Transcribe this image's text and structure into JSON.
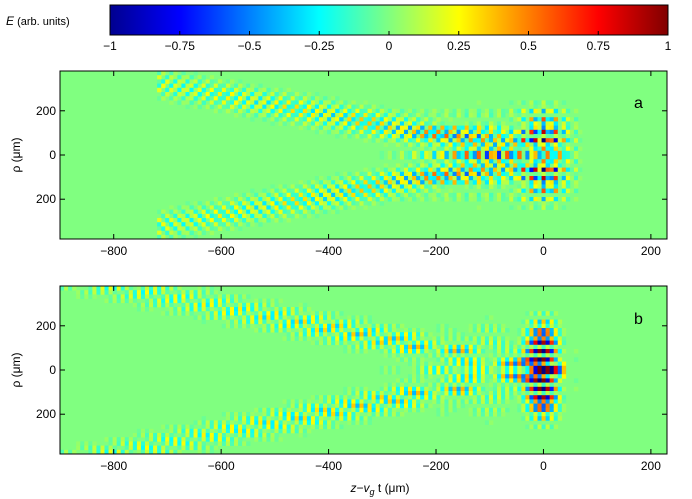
{
  "colorbar": {
    "label_var": "E",
    "label_unit": " (arb. units)",
    "ticks": [
      {
        "value": -1,
        "label": "−1"
      },
      {
        "value": -0.75,
        "label": "−0.75"
      },
      {
        "value": -0.5,
        "label": "−0.5"
      },
      {
        "value": -0.25,
        "label": "−0.25"
      },
      {
        "value": 0,
        "label": "0"
      },
      {
        "value": 0.25,
        "label": "0.25"
      },
      {
        "value": 0.5,
        "label": "0.5"
      },
      {
        "value": 0.75,
        "label": "0.75"
      },
      {
        "value": 1,
        "label": "1"
      }
    ],
    "range": [
      -1,
      1
    ],
    "colormap": "jet"
  },
  "chart_data": [
    {
      "type": "heatmap",
      "panel_label": "a",
      "xlabel": "",
      "ylabel": "ρ (μm)",
      "xlim": [
        -900,
        230
      ],
      "ylim": [
        -380,
        380
      ],
      "x_ticks": [
        {
          "value": -800,
          "label": "−800"
        },
        {
          "value": -600,
          "label": "−600"
        },
        {
          "value": -400,
          "label": "−400"
        },
        {
          "value": -200,
          "label": "−200"
        },
        {
          "value": 0,
          "label": "0"
        },
        {
          "value": 200,
          "label": "200"
        }
      ],
      "y_ticks": [
        {
          "value": 200,
          "label": "200"
        },
        {
          "value": 0,
          "label": "0"
        },
        {
          "value": -200,
          "label": "200"
        }
      ],
      "field": {
        "central_x": 0,
        "central_x_halfwidth": 45,
        "central_rho_halfwidth": 200,
        "cone_apex_x": 0,
        "cone_slope": 0.45,
        "cone_extent_x": -720,
        "wavelength_x": 24
      }
    },
    {
      "type": "heatmap",
      "panel_label": "b",
      "xlabel": "z−v_g t (μm)",
      "ylabel": "ρ (μm)",
      "xlim": [
        -900,
        230
      ],
      "ylim": [
        -380,
        380
      ],
      "x_ticks": [
        {
          "value": -800,
          "label": "−800"
        },
        {
          "value": -600,
          "label": "−600"
        },
        {
          "value": -400,
          "label": "−400"
        },
        {
          "value": -200,
          "label": "−200"
        },
        {
          "value": 0,
          "label": "0"
        },
        {
          "value": 200,
          "label": "200"
        }
      ],
      "y_ticks": [
        {
          "value": 200,
          "label": "200"
        },
        {
          "value": 0,
          "label": "0"
        },
        {
          "value": -200,
          "label": "200"
        }
      ],
      "field": {
        "central_x": 0,
        "central_x_halfwidth": 40,
        "central_rho_halfwidth": 220,
        "cone_apex_x": 0,
        "cone_slope": 0.47,
        "cone_extent_x": -900,
        "wavelength_x": 14
      }
    }
  ],
  "xlabel_parts": {
    "z": "z",
    "minus": "−",
    "v": "v",
    "g": "g",
    "t": " t (μm)"
  }
}
